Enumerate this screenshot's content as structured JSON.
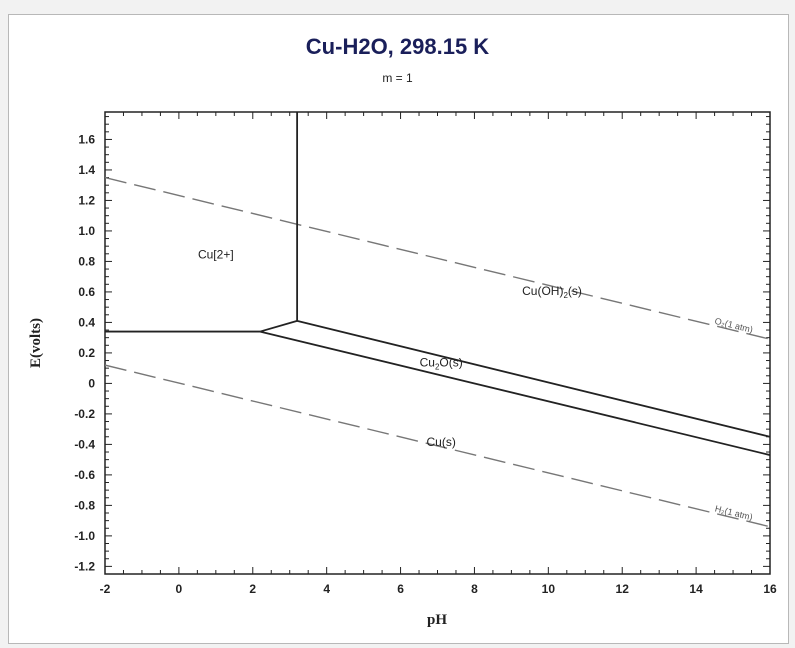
{
  "chart_data": {
    "type": "line",
    "title": "Cu-H2O, 298.15 K",
    "subtitle": "m = 1",
    "xlabel": "pH",
    "ylabel": "E(volts)",
    "xlim": [
      -2,
      16
    ],
    "ylim": [
      -1.25,
      1.78
    ],
    "x_ticks": [
      -2,
      0,
      2,
      4,
      6,
      8,
      10,
      12,
      14,
      16
    ],
    "y_ticks": [
      -1.2,
      -1.0,
      -0.8,
      -0.6,
      -0.4,
      -0.2,
      0,
      0.2,
      0.4,
      0.6,
      0.8,
      1.0,
      1.2,
      1.4,
      1.6
    ],
    "y_tick_labels": [
      "-1.2",
      "-1.0",
      "-0.8",
      "-0.6",
      "-0.4",
      "-0.2",
      "0",
      "0.2",
      "0.4",
      "0.6",
      "0.8",
      "1.0",
      "1.2",
      "1.4",
      "1.6"
    ],
    "boundaries": [
      {
        "points": [
          [
            -2,
            0.34
          ],
          [
            2.2,
            0.34
          ]
        ]
      },
      {
        "points": [
          [
            3.2,
            1.78
          ],
          [
            3.2,
            0.41
          ]
        ]
      },
      {
        "points": [
          [
            2.2,
            0.34
          ],
          [
            3.2,
            0.41
          ]
        ]
      },
      {
        "points": [
          [
            3.2,
            0.41
          ],
          [
            16,
            -0.35
          ]
        ]
      },
      {
        "points": [
          [
            2.2,
            0.34
          ],
          [
            16,
            -0.47
          ]
        ]
      }
    ],
    "reference_lines": [
      {
        "label": "O₂(1 atm)",
        "points": [
          [
            -2,
            1.35
          ],
          [
            16,
            0.29
          ]
        ]
      },
      {
        "label": "H₂(1 atm)",
        "points": [
          [
            -2,
            0.12
          ],
          [
            16,
            -0.94
          ]
        ]
      }
    ],
    "regions": [
      {
        "label": "Cu[2+]",
        "x": 1.0,
        "y": 0.82
      },
      {
        "label": "Cu(OH)",
        "sub": "2",
        "suffix": "(s)",
        "x": 10.1,
        "y": 0.58
      },
      {
        "label": "Cu",
        "sub": "2",
        "suffix": "O(s)",
        "x": 7.1,
        "y": 0.11
      },
      {
        "label": "Cu(s)",
        "x": 7.1,
        "y": -0.41
      }
    ]
  }
}
